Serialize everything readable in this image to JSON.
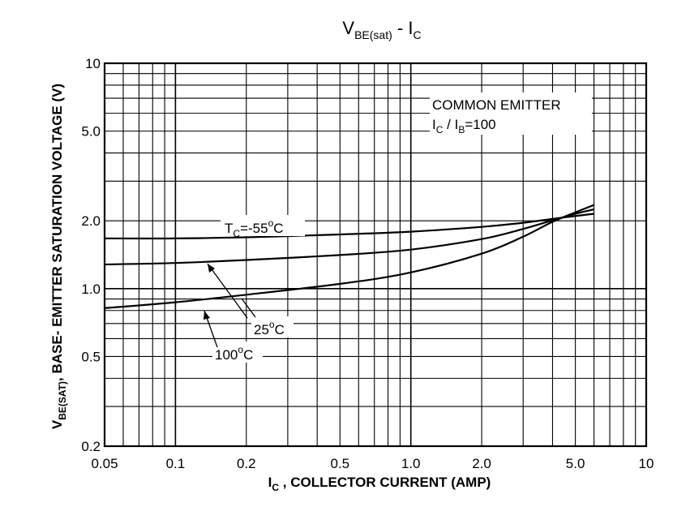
{
  "chart_data": {
    "type": "line",
    "title": {
      "main": "V",
      "sub": "BE(sat)",
      "mid": " - I",
      "sub2": "C"
    },
    "xlabel": {
      "main": "I",
      "sub": "C",
      "rest": " , COLLECTOR CURRENT (AMP)"
    },
    "ylabel": {
      "main": "V",
      "sub": "BE(SAT)",
      "rest": ", BASE- EMITTER SATURATION VOLTAGE (V)"
    },
    "x_scale": "log",
    "y_scale": "log",
    "xlim": [
      0.05,
      10
    ],
    "ylim": [
      0.2,
      10
    ],
    "x_ticks": [
      {
        "value": 0.05,
        "label": "0.05"
      },
      {
        "value": 0.1,
        "label": "0.1"
      },
      {
        "value": 0.2,
        "label": "0.2"
      },
      {
        "value": 0.5,
        "label": "0.5"
      },
      {
        "value": 1,
        "label": "1.0"
      },
      {
        "value": 2,
        "label": "2.0"
      },
      {
        "value": 5,
        "label": "5.0"
      },
      {
        "value": 10,
        "label": "10"
      }
    ],
    "y_ticks": [
      {
        "value": 0.2,
        "label": "0.2"
      },
      {
        "value": 0.5,
        "label": "0.5"
      },
      {
        "value": 1,
        "label": "1.0"
      },
      {
        "value": 2,
        "label": "2.0"
      },
      {
        "value": 5,
        "label": "5.0"
      },
      {
        "value": 10,
        "label": "10"
      }
    ],
    "grid": true,
    "x_major_grid": [
      0.1,
      1,
      10
    ],
    "x_minor_grid": [
      0.06,
      0.07,
      0.08,
      0.09,
      0.2,
      0.3,
      0.4,
      0.5,
      0.6,
      0.7,
      0.8,
      0.9,
      2,
      3,
      4,
      5,
      6,
      7,
      8,
      9
    ],
    "y_major_grid": [
      1,
      10
    ],
    "y_minor_grid": [
      0.3,
      0.4,
      0.5,
      0.6,
      0.7,
      0.8,
      0.9,
      2,
      3,
      4,
      5,
      6,
      7,
      8,
      9
    ],
    "series": [
      {
        "x": [
          0.05,
          0.1,
          0.2,
          0.5,
          1,
          2,
          3,
          4,
          5,
          6
        ],
        "y": [
          1.67,
          1.67,
          1.69,
          1.74,
          1.79,
          1.88,
          1.96,
          2.04,
          2.1,
          2.15
        ]
      },
      {
        "x": [
          0.05,
          0.1,
          0.2,
          0.5,
          1,
          2,
          3,
          4,
          5,
          6
        ],
        "y": [
          1.28,
          1.3,
          1.34,
          1.41,
          1.49,
          1.66,
          1.84,
          2.01,
          2.15,
          2.25
        ]
      },
      {
        "x": [
          0.05,
          0.1,
          0.2,
          0.5,
          1,
          2,
          3,
          4,
          5,
          6
        ],
        "y": [
          0.82,
          0.87,
          0.94,
          1.05,
          1.18,
          1.43,
          1.7,
          1.98,
          2.18,
          2.35
        ]
      }
    ],
    "annotations": {
      "common_emitter": "COMMON EMITTER",
      "ratio": {
        "a": "I",
        "a_sub": "C",
        "mid": " / I",
        "b_sub": "B",
        "rest": "=100"
      },
      "tc_label": {
        "main": "T",
        "sub": "C",
        "rest": "=-55",
        "deg": "o",
        "unit": "C"
      },
      "t25_label": {
        "main": "25",
        "deg": "o",
        "unit": "C"
      },
      "t100_label": {
        "main": "100",
        "deg": "o",
        "unit": "C"
      }
    }
  }
}
